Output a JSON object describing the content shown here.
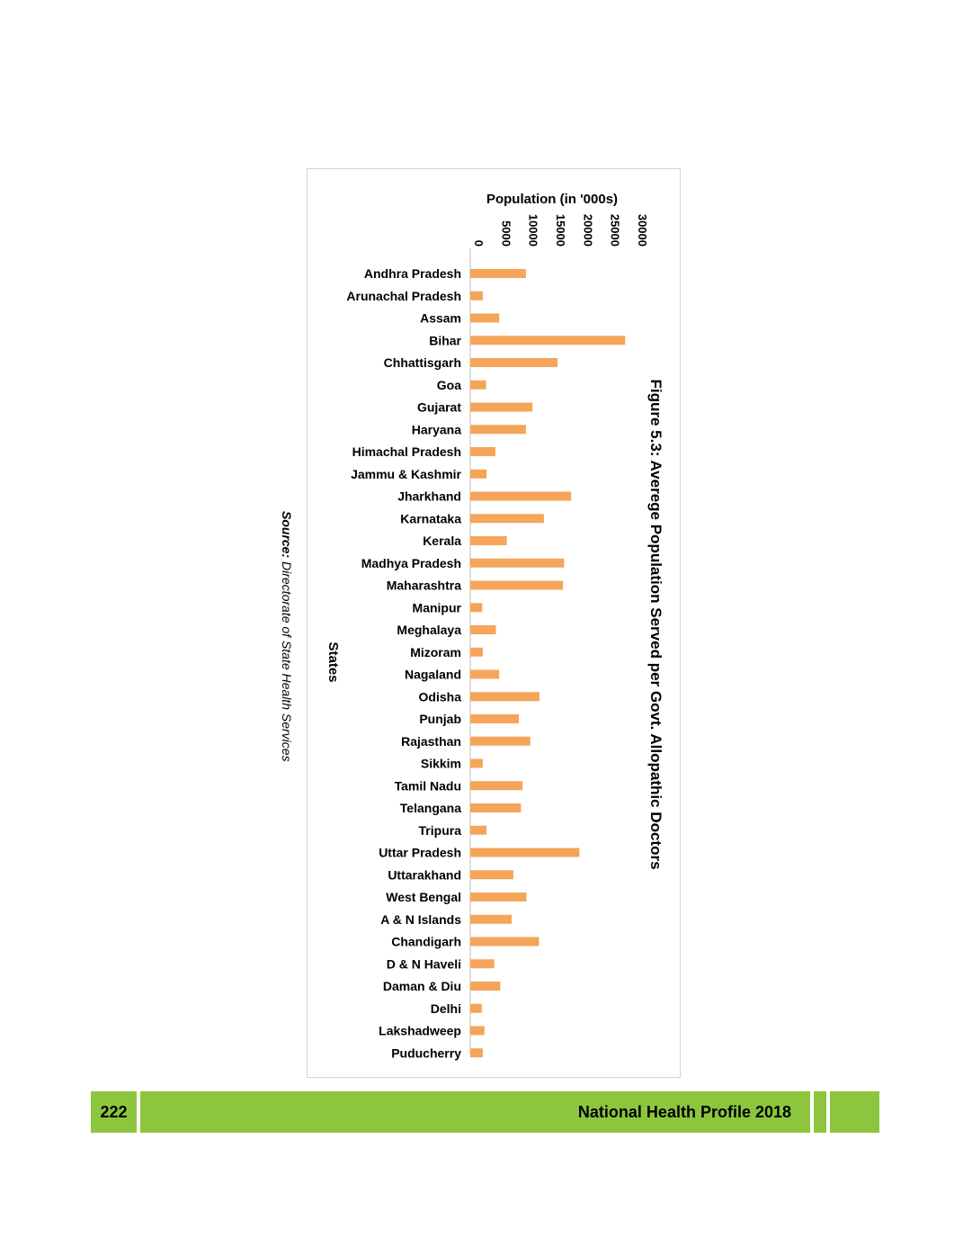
{
  "chart_data": {
    "type": "bar",
    "orientation": "rotated-horizontal-bar",
    "title": "Figure 5.3: Averege Population Served per Govt. Allopathic Doctors",
    "xlabel": "States",
    "ylabel": "Population (in '000s)",
    "ylim": [
      0,
      30000
    ],
    "yticks": [
      0,
      5000,
      10000,
      15000,
      20000,
      25000,
      30000
    ],
    "bar_color": "#f4a55a",
    "categories": [
      "Andhra Pradesh",
      "Arunachal Pradesh",
      "Assam",
      "Bihar",
      "Chhattisgarh",
      "Goa",
      "Gujarat",
      "Haryana",
      "Himachal Pradesh",
      "Jammu & Kashmir",
      "Jharkhand",
      "Karnataka",
      "Kerala",
      "Madhya Pradesh",
      "Maharashtra",
      "Manipur",
      "Meghalaya",
      "Mizoram",
      "Nagaland",
      "Odisha",
      "Punjab",
      "Rajasthan",
      "Sikkim",
      "Tamil Nadu",
      "Telangana",
      "Tripura",
      "Uttar Pradesh",
      "Uttarakhand",
      "West Bengal",
      "A & N Islands",
      "Chandigarh",
      "D & N Haveli",
      "Daman & Diu",
      "Delhi",
      "Lakshadweep",
      "Puducherry"
    ],
    "values": [
      10200,
      2300,
      5300,
      28400,
      16000,
      2900,
      11400,
      10200,
      4600,
      3000,
      18500,
      13500,
      6700,
      17200,
      17000,
      2200,
      4700,
      2300,
      5300,
      12700,
      8900,
      11000,
      2300,
      9600,
      9300,
      3000,
      20000,
      7900,
      10300,
      7600,
      12600,
      4400,
      5500,
      2100,
      2600,
      2300
    ]
  },
  "source": {
    "label": "Source:",
    "text": " Directorate of State Health Services"
  },
  "footer": {
    "page_number": "222",
    "title": "National Health Profile 2018",
    "color": "#8cc63f"
  }
}
